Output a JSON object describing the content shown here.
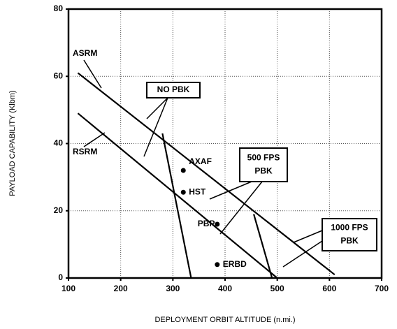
{
  "chart_data": {
    "type": "line",
    "xlabel": "DEPLOYMENT ORBIT ALTITUDE (n.mi.)",
    "ylabel": "PAYLOAD CAPABILITY (Klbm)",
    "xlim": [
      100,
      700
    ],
    "xticks": [
      100,
      200,
      300,
      400,
      500,
      600,
      700
    ],
    "ylim": [
      0,
      80
    ],
    "yticks": [
      0,
      20,
      40,
      60,
      80
    ],
    "grid": true,
    "series": [
      {
        "name": "ASRM",
        "color": "#000000",
        "x": [
          118,
          610
        ],
        "values": [
          61,
          1
        ]
      },
      {
        "name": "RSRM",
        "color": "#000000",
        "x": [
          118,
          500
        ],
        "values": [
          49,
          0
        ]
      },
      {
        "color": "#000000",
        "x": [
          280,
          335
        ],
        "values": [
          43,
          0
        ]
      },
      {
        "color": "#000000",
        "x": [
          455,
          490
        ],
        "values": [
          19,
          0
        ]
      }
    ],
    "points": {
      "color": "#000000",
      "labels": [
        "AXAF",
        "HST",
        "PBP",
        "ERBD"
      ],
      "x": [
        320,
        320,
        385,
        385
      ],
      "values": [
        32,
        25.5,
        16,
        4
      ]
    },
    "annotations": [
      {
        "text": [
          "NO PBK"
        ]
      },
      {
        "text": [
          "500 FPS",
          "PBK"
        ]
      },
      {
        "text": [
          "1000 FPS",
          "PBK"
        ]
      }
    ]
  }
}
